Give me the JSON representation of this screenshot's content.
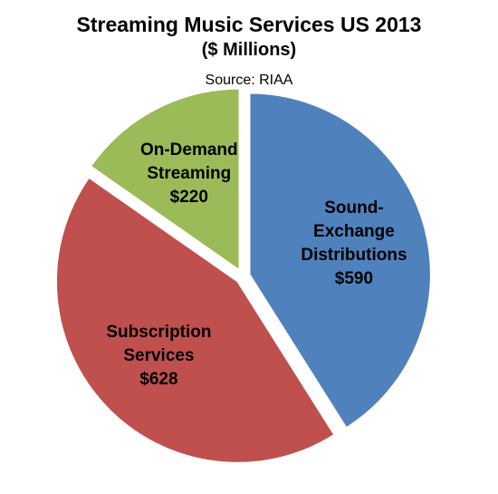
{
  "chart_data": {
    "type": "pie",
    "title": "Streaming Music Services US 2013",
    "subtitle": "($ Millions)",
    "source": "Source: RIAA",
    "categories": [
      "Sound-Exchange Distributions",
      "Subscription Services",
      "On-Demand Streaming"
    ],
    "values": [
      590,
      628,
      220
    ],
    "value_labels": [
      "$590",
      "$628",
      "$220"
    ],
    "colors": [
      "#4f81bd",
      "#c0504d",
      "#9bbb59"
    ]
  }
}
